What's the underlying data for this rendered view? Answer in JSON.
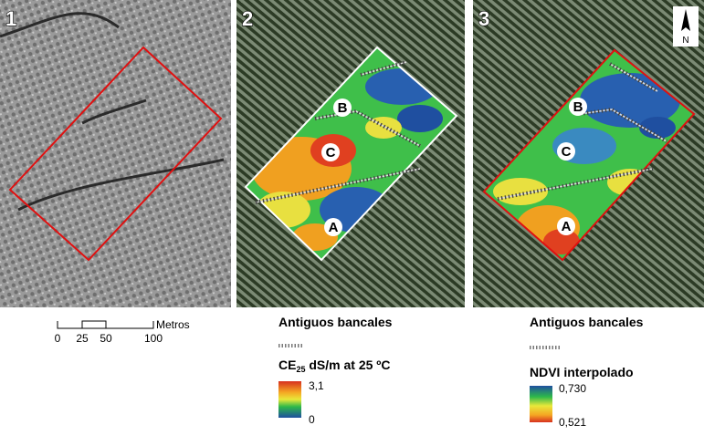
{
  "panels": [
    {
      "number": "1"
    },
    {
      "number": "2",
      "labels": [
        "B",
        "C",
        "A"
      ]
    },
    {
      "number": "3",
      "labels": [
        "B",
        "C",
        "A"
      ]
    }
  ],
  "north": "N",
  "scale_bar": {
    "unit": "Metros",
    "labels": [
      "0",
      "25",
      "50",
      "100"
    ]
  },
  "legends": [
    {
      "line_label": "Antiguos bancales",
      "ramp_title": {
        "prefix": "CE",
        "subscript": "25",
        "suffix": " dS/m at 25 ºC"
      },
      "max": "3,1",
      "min": "0"
    },
    {
      "line_label": "Antiguos bancales",
      "ramp_title": "NDVI interpolado",
      "max": "0,730",
      "min": "0,521"
    }
  ]
}
